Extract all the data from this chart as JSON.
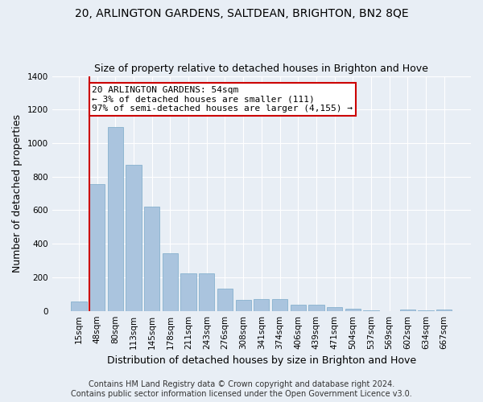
{
  "title": "20, ARLINGTON GARDENS, SALTDEAN, BRIGHTON, BN2 8QE",
  "subtitle": "Size of property relative to detached houses in Brighton and Hove",
  "xlabel": "Distribution of detached houses by size in Brighton and Hove",
  "ylabel": "Number of detached properties",
  "footer_line1": "Contains HM Land Registry data © Crown copyright and database right 2024.",
  "footer_line2": "Contains public sector information licensed under the Open Government Licence v3.0.",
  "bar_labels": [
    "15sqm",
    "48sqm",
    "80sqm",
    "113sqm",
    "145sqm",
    "178sqm",
    "211sqm",
    "243sqm",
    "276sqm",
    "308sqm",
    "341sqm",
    "374sqm",
    "406sqm",
    "439sqm",
    "471sqm",
    "504sqm",
    "537sqm",
    "569sqm",
    "602sqm",
    "634sqm",
    "667sqm"
  ],
  "bar_values": [
    55,
    755,
    1095,
    870,
    620,
    345,
    225,
    225,
    135,
    65,
    70,
    70,
    35,
    35,
    22,
    15,
    5,
    0,
    10,
    5,
    10
  ],
  "bar_color": "#aac4de",
  "bar_edge_color": "#7aaac8",
  "annotation_box_text": "20 ARLINGTON GARDENS: 54sqm\n← 3% of detached houses are smaller (111)\n97% of semi-detached houses are larger (4,155) →",
  "annotation_box_color": "#ffffff",
  "annotation_box_edge_color": "#cc0000",
  "vline_color": "#cc0000",
  "ylim": [
    0,
    1400
  ],
  "background_color": "#e8eef5",
  "plot_background_color": "#e8eef5",
  "grid_color": "#ffffff",
  "title_fontsize": 10,
  "subtitle_fontsize": 9,
  "xlabel_fontsize": 9,
  "ylabel_fontsize": 9,
  "tick_fontsize": 7.5,
  "annotation_fontsize": 8,
  "footer_fontsize": 7
}
